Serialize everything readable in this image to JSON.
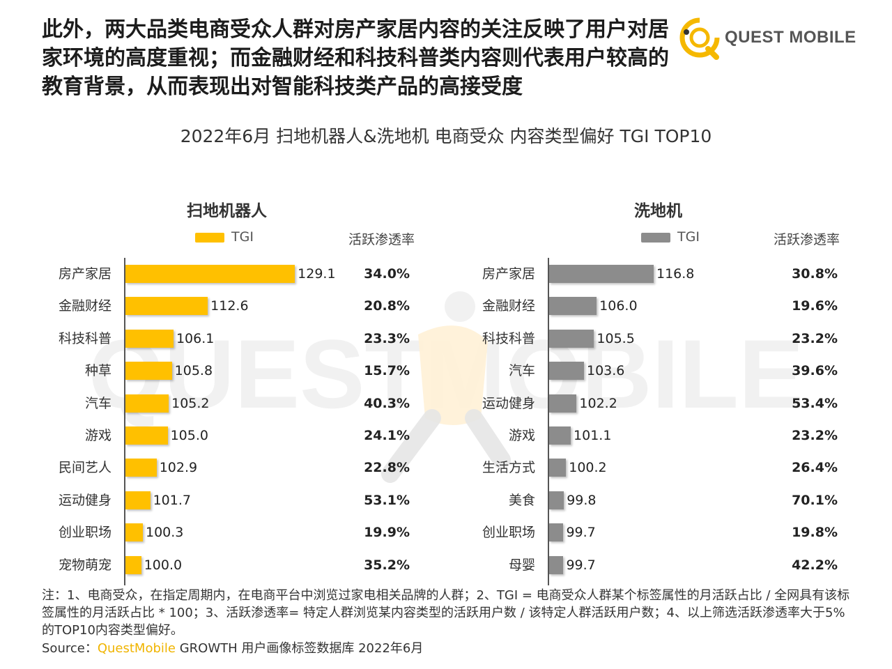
{
  "headline": "此外，两大品类电商受众人群对房产家居内容的关注反映了用户对居家环境的高度重视；而金融财经和科技科普类内容则代表用户较高的教育背景，从而表现出对智能科技类产品的高接受度",
  "brand": "QUEST MOBILE",
  "watermark": "QUESTMOBILE",
  "colors": {
    "yellow": "#FFC000",
    "gray": "#8C8C8C",
    "brand_yellow": "#F5B800"
  },
  "chart_data": [
    {
      "type": "bar",
      "title": "2022年6月 扫地机器人&洗地机 电商受众 内容类型偏好 TGI TOP10",
      "panel_title": "扫地机器人",
      "legend": "TGI",
      "rate_header": "活跃渗透率",
      "categories": [
        "房产家居",
        "金融财经",
        "科技科普",
        "种草",
        "汽车",
        "游戏",
        "民间艺人",
        "运动健身",
        "创业职场",
        "宠物萌宠"
      ],
      "values": [
        129.1,
        112.6,
        106.1,
        105.8,
        105.2,
        105.0,
        102.9,
        101.7,
        100.3,
        100.0
      ],
      "value_labels": [
        "129.1",
        "112.6",
        "106.1",
        "105.8",
        "105.2",
        "105.0",
        "102.9",
        "101.7",
        "100.3",
        "100.0"
      ],
      "rates": [
        "34.0%",
        "20.8%",
        "23.3%",
        "15.7%",
        "40.3%",
        "24.1%",
        "22.8%",
        "53.1%",
        "19.9%",
        "35.2%"
      ],
      "color": "#FFC000"
    },
    {
      "type": "bar",
      "panel_title": "洗地机",
      "legend": "TGI",
      "rate_header": "活跃渗透率",
      "categories": [
        "房产家居",
        "金融财经",
        "科技科普",
        "汽车",
        "运动健身",
        "游戏",
        "生活方式",
        "美食",
        "创业职场",
        "母婴"
      ],
      "values": [
        116.8,
        106.0,
        105.5,
        103.6,
        102.2,
        101.1,
        100.2,
        99.8,
        99.7,
        99.7
      ],
      "value_labels": [
        "116.8",
        "106.0",
        "105.5",
        "103.6",
        "102.2",
        "101.1",
        "100.2",
        "99.8",
        "99.7",
        "99.7"
      ],
      "rates": [
        "30.8%",
        "19.6%",
        "23.2%",
        "39.6%",
        "53.4%",
        "23.2%",
        "26.4%",
        "70.1%",
        "19.8%",
        "42.2%"
      ],
      "color": "#8C8C8C"
    }
  ],
  "notes": "注：1、电商受众，在指定周期内，在电商平台中浏览过家电相关品牌的人群；2、TGI = 电商受众人群某个标签属性的月活跃占比 / 全网具有该标签属性的月活跃占比 * 100；3、活跃渗透率= 特定人群浏览某内容类型的活跃用户数 / 该特定人群活跃用户数；4、以上筛选活跃渗透率大于5%的TOP10内容类型偏好。",
  "source": {
    "prefix": "Source：",
    "brand": "QuestMobile",
    "suffix": " GROWTH 用户画像标签数据库 2022年6月"
  }
}
